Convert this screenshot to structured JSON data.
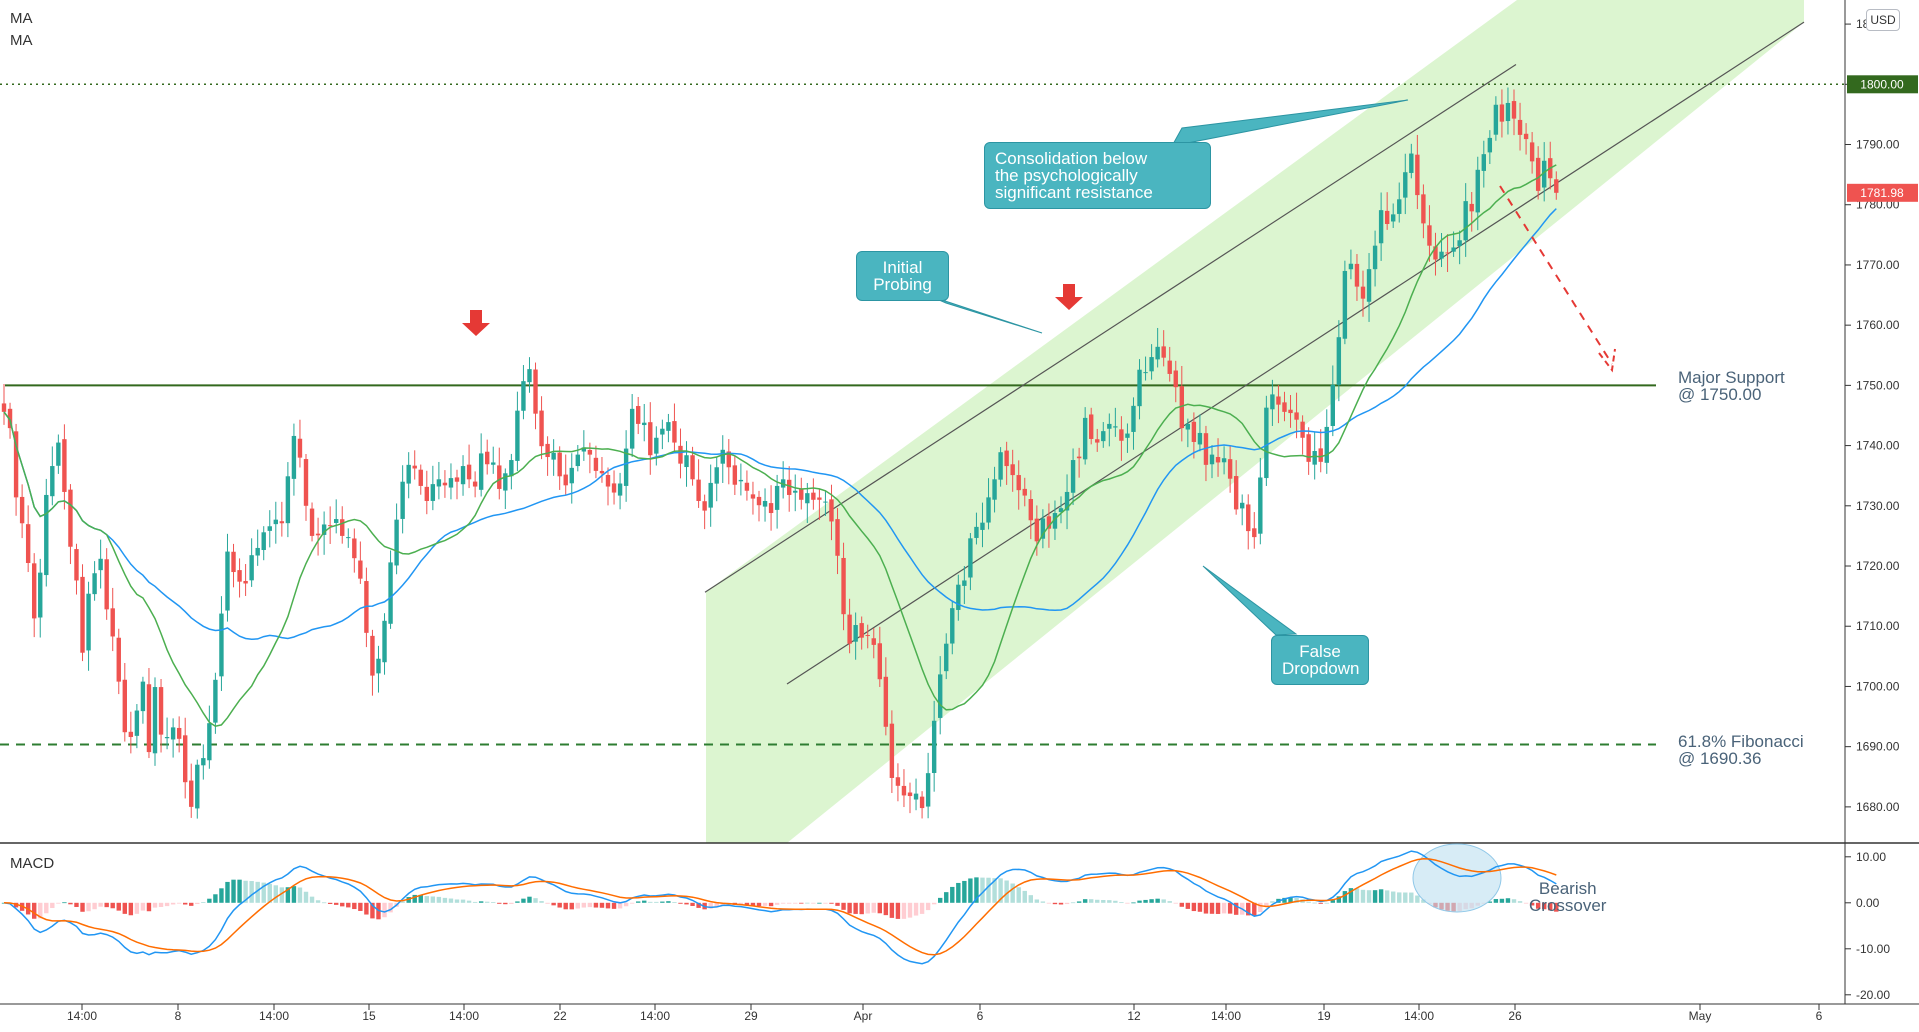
{
  "labels": {
    "ma1": "MA",
    "ma2": "MA",
    "macd": "MACD",
    "currency": "USD"
  },
  "annotations": {
    "consolidation": [
      "Consolidation below",
      "the psychologically",
      "significant resistance"
    ],
    "initial_probing": [
      "Initial",
      "Probing"
    ],
    "false_dropdown": [
      "False",
      "Dropdown"
    ],
    "major_support": [
      "Major Support",
      "@ 1750.00"
    ],
    "fibonacci": [
      "61.8% Fibonacci",
      "@ 1690.36"
    ],
    "bearish_crossover": [
      "Bearish",
      "Crossover"
    ]
  },
  "colors": {
    "up": "#26a69a",
    "down": "#ef5350",
    "ma_fast": "#4caf50",
    "ma_slow": "#2196f3",
    "macd_line": "#2196f3",
    "signal_line": "#ff6d00",
    "channel_fill": "#dcf5d0",
    "support_line": "#33691e",
    "callout": "#4ab5c0",
    "price_tag": "#ef5350",
    "resistance_tag": "#33691e"
  },
  "chart_data": {
    "type": "candlestick",
    "symbol_currency": "USD",
    "x_axis_labels": [
      "14:00",
      "8",
      "14:00",
      "15",
      "14:00",
      "22",
      "14:00",
      "29",
      "Apr",
      "6",
      "12",
      "14:00",
      "19",
      "14:00",
      "26",
      "May",
      "6"
    ],
    "price_axis": {
      "ylim": [
        1674,
        1814
      ],
      "ticks": [
        1680,
        1690,
        1700,
        1710,
        1720,
        1730,
        1740,
        1750,
        1760,
        1770,
        1780,
        1790,
        1800,
        1810
      ],
      "tick_labels": [
        "1680.00",
        "1690.00",
        "1700.00",
        "1710.00",
        "1720.00",
        "1730.00",
        "1740.00",
        "1750.00",
        "1760.00",
        "1770.00",
        "1780.00",
        "1790.00",
        "1800.00",
        "1810.00"
      ]
    },
    "macd_axis": {
      "ylim": [
        -22,
        13
      ],
      "ticks": [
        10,
        0,
        -10,
        -20
      ],
      "tick_labels": [
        "10.00",
        "0.00",
        "-10.00",
        "-20.00"
      ]
    },
    "last_price": 1781.98,
    "last_price_label": "1781.98",
    "resistance": {
      "value": 1800.0,
      "label": "1800.00"
    },
    "major_support": 1750.0,
    "fibonacci_618": 1690.36,
    "candles_close": [
      1745.6,
      1742.9,
      1731.4,
      1727.1,
      1720.5,
      1711.3,
      1718.9,
      1731.8,
      1736.6,
      1740.5,
      1732.3,
      1723.2,
      1717.6,
      1705.6,
      1715.4,
      1718.8,
      1721.2,
      1712.8,
      1708.3,
      1700.8,
      1692.4,
      1691.6,
      1696.0,
      1700.8,
      1689.1,
      1699.9,
      1692.0,
      1691.6,
      1693.2,
      1691.3,
      1684.1,
      1680.0,
      1687.0,
      1688.1,
      1693.9,
      1701.1,
      1712.1,
      1722.4,
      1719.0,
      1717.4,
      1717.1,
      1721.8,
      1723.0,
      1725.6,
      1726.6,
      1727.7,
      1727.1,
      1734.9,
      1741.6,
      1738.0,
      1730.0,
      1725.0,
      1725.1,
      1726.9,
      1726.7,
      1727.8,
      1725.0,
      1724.8,
      1721.3,
      1717.9,
      1708.9,
      1701.8,
      1704.6,
      1710.9,
      1720.6,
      1727.7,
      1734.0,
      1736.8,
      1736.2,
      1733.3,
      1730.8,
      1733.6,
      1734.4,
      1733.4,
      1734.6,
      1734.0,
      1736.6,
      1734.4,
      1733.2,
      1738.7,
      1736.9,
      1737.2,
      1732.8,
      1735.4,
      1737.6,
      1745.8,
      1750.7,
      1752.7,
      1745.3,
      1739.9,
      1738.1,
      1738.8,
      1734.9,
      1733.4,
      1736.3,
      1738.5,
      1739.7,
      1738.5,
      1735.8,
      1735.4,
      1733.2,
      1732.2,
      1733.7,
      1739.5,
      1746.1,
      1743.6,
      1743.8,
      1738.4,
      1741.3,
      1742.8,
      1743.9,
      1740.5,
      1737.0,
      1738.4,
      1734.4,
      1730.8,
      1729.2,
      1733.8,
      1736.4,
      1739.3,
      1736.4,
      1733.5,
      1734.3,
      1732.5,
      1731.2,
      1730.1,
      1730.8,
      1728.8,
      1733.3,
      1734.4,
      1731.8,
      1732.5,
      1731.0,
      1732.1,
      1731.0,
      1731.0,
      1730.7,
      1727.4,
      1721.7,
      1712.0,
      1707.1,
      1710.2,
      1708.1,
      1708.5,
      1706.9,
      1701.2,
      1693.3,
      1684.8,
      1683.5,
      1681.9,
      1681.8,
      1682.2,
      1679.8,
      1685.6,
      1694.3,
      1702.0,
      1707.1,
      1713.0,
      1716.9,
      1717.6,
      1724.6,
      1726.5,
      1727.2,
      1731.4,
      1734.4,
      1738.9,
      1736.6,
      1735.1,
      1732.6,
      1731.7,
      1727.6,
      1724.1,
      1727.9,
      1726.2,
      1728.8,
      1729.6,
      1732.3,
      1737.6,
      1737.9,
      1744.6,
      1741.1,
      1740.5,
      1742.4,
      1743.6,
      1743.2,
      1740.8,
      1742.0,
      1746.6,
      1752.6,
      1752.2,
      1754.7,
      1756.4,
      1754.6,
      1751.9,
      1749.7,
      1742.9,
      1743.6,
      1740.6,
      1742.1,
      1736.8,
      1738.5,
      1737.2,
      1737.9,
      1734.5,
      1729.4,
      1730.5,
      1725.8,
      1724.8,
      1734.7,
      1746.3,
      1748.5,
      1746.8,
      1745.6,
      1745.4,
      1744.3,
      1741.3,
      1737.3,
      1739.1,
      1737.3,
      1743.1,
      1750.1,
      1758.0,
      1769.0,
      1770.2,
      1766.4,
      1764.4,
      1769.3,
      1773.2,
      1779.1,
      1776.8,
      1778.4,
      1780.9,
      1785.4,
      1788.5,
      1781.6,
      1776.9,
      1773.2,
      1770.9,
      1772.2,
      1772.0,
      1772.9,
      1774.1,
      1780.6,
      1778.9,
      1785.8,
      1788.4,
      1791.1,
      1796.6,
      1793.8,
      1796.9,
      1794.3,
      1791.6,
      1790.9,
      1787.2,
      1782.3,
      1787.3,
      1784.4,
      1781.98
    ]
  }
}
